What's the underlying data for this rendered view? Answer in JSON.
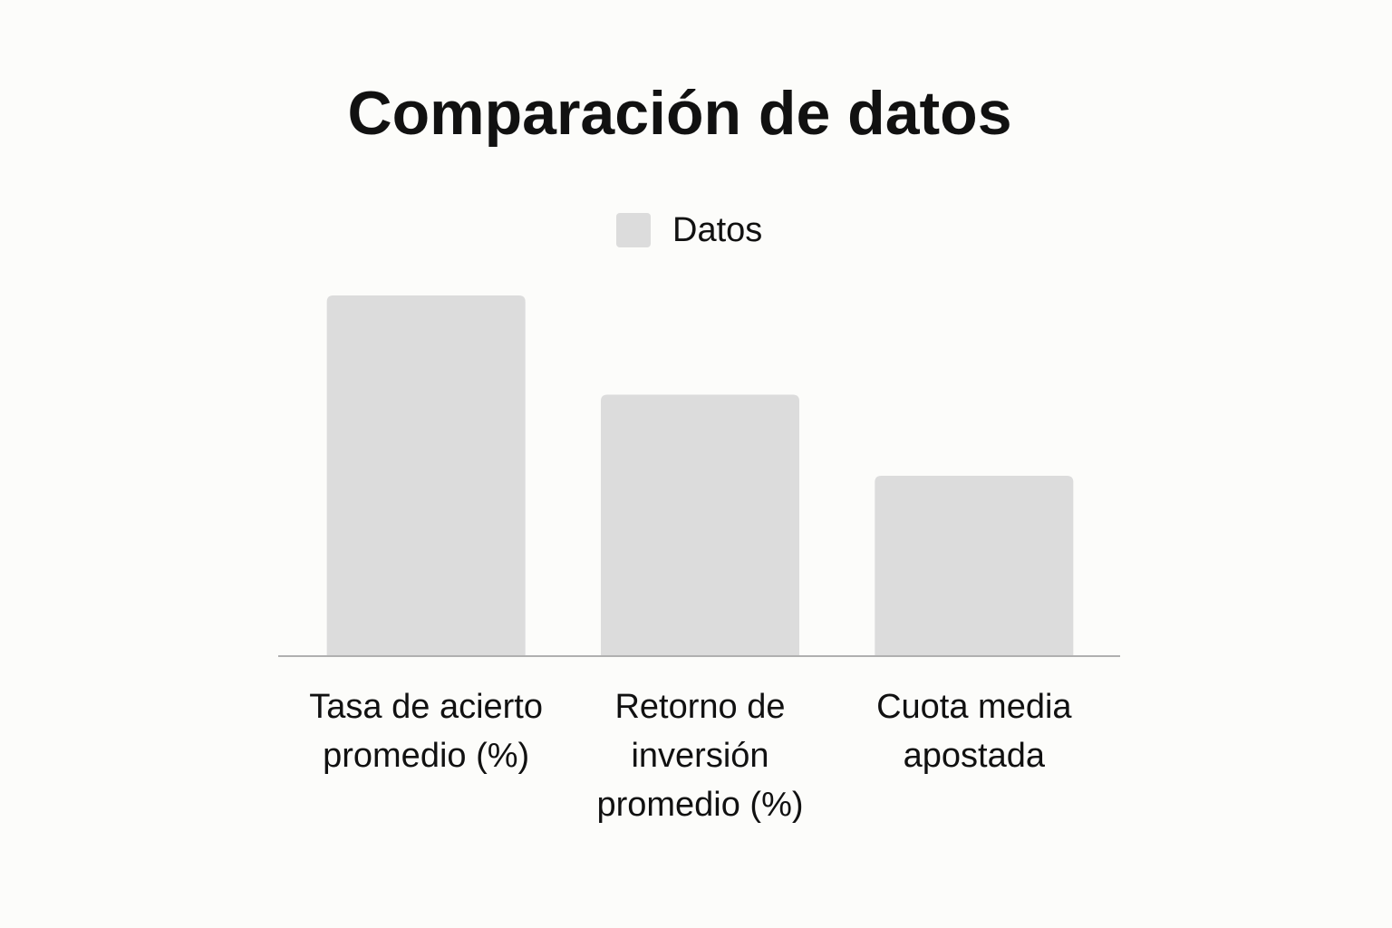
{
  "chart_data": {
    "type": "bar",
    "title": "Comparación de datos",
    "categories": [
      "Tasa de acierto promedio (%)",
      "Retorno de inversión promedio (%)",
      "Cuota media apostada"
    ],
    "series": [
      {
        "name": "Datos",
        "color": "#dcdcdc",
        "values": [
          40,
          29,
          20
        ]
      }
    ]
  }
}
